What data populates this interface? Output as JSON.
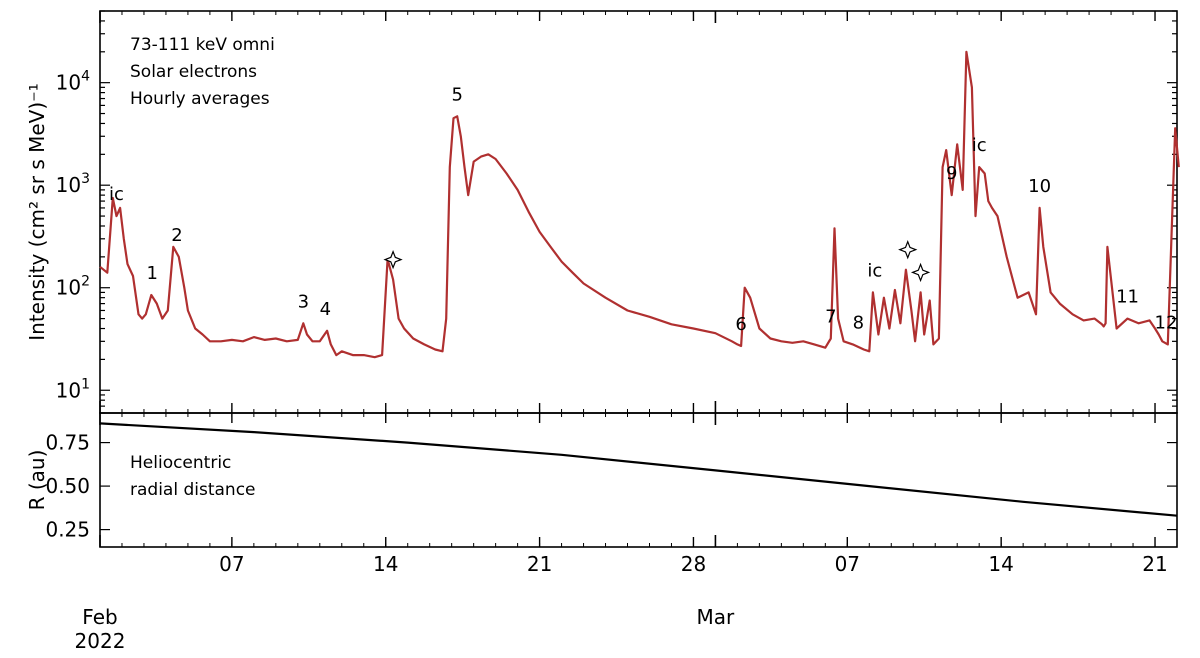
{
  "chart_data": [
    {
      "type": "line",
      "panel": "top",
      "xlabel": "",
      "ylabel": "Intensity (cm² sr s MeV)⁻¹",
      "yscale": "log",
      "ylim": [
        6,
        50000
      ],
      "xlim": [
        "2022-02-01",
        "2022-03-22"
      ],
      "y_ticks": [
        {
          "value": 10,
          "base": "10",
          "exp": "1"
        },
        {
          "value": 100,
          "base": "10",
          "exp": "2"
        },
        {
          "value": 1000,
          "base": "10",
          "exp": "3"
        },
        {
          "value": 10000,
          "base": "10",
          "exp": "4"
        }
      ],
      "info_lines": [
        "73-111 keV omni",
        "Solar electrons",
        "Hourly averages"
      ],
      "series": [
        {
          "color": "#b03030",
          "x": [
            "2022-02-01T00:00",
            "2022-02-01T08:00",
            "2022-02-01T14:00",
            "2022-02-01T18:00",
            "2022-02-01T22:00",
            "2022-02-02T02:00",
            "2022-02-02T06:00",
            "2022-02-02T12:00",
            "2022-02-02T18:00",
            "2022-02-02T22:00",
            "2022-02-03T02:00",
            "2022-02-03T08:00",
            "2022-02-03T14:00",
            "2022-02-03T20:00",
            "2022-02-04T02:00",
            "2022-02-04T08:00",
            "2022-02-04T14:00",
            "2022-02-04T20:00",
            "2022-02-05T00:00",
            "2022-02-05T08:00",
            "2022-02-05T16:00",
            "2022-02-06T00:00",
            "2022-02-06T12:00",
            "2022-02-07T00:00",
            "2022-02-07T12:00",
            "2022-02-08T00:00",
            "2022-02-08T12:00",
            "2022-02-09T00:00",
            "2022-02-09T12:00",
            "2022-02-10T00:00",
            "2022-02-10T06:00",
            "2022-02-10T10:00",
            "2022-02-10T16:00",
            "2022-02-11T00:00",
            "2022-02-11T08:00",
            "2022-02-11T12:00",
            "2022-02-11T18:00",
            "2022-02-12T00:00",
            "2022-02-12T12:00",
            "2022-02-13T00:00",
            "2022-02-13T12:00",
            "2022-02-13T20:00",
            "2022-02-14T02:00",
            "2022-02-14T08:00",
            "2022-02-14T14:00",
            "2022-02-14T20:00",
            "2022-02-15T06:00",
            "2022-02-15T18:00",
            "2022-02-16T06:00",
            "2022-02-16T14:00",
            "2022-02-16T18:00",
            "2022-02-16T22:00",
            "2022-02-17T02:00",
            "2022-02-17T06:00",
            "2022-02-17T10:00",
            "2022-02-17T14:00",
            "2022-02-17T18:00",
            "2022-02-18T00:00",
            "2022-02-18T08:00",
            "2022-02-18T16:00",
            "2022-02-19T00:00",
            "2022-02-19T12:00",
            "2022-02-20T00:00",
            "2022-02-20T12:00",
            "2022-02-21T00:00",
            "2022-02-21T12:00",
            "2022-02-22T00:00",
            "2022-02-22T12:00",
            "2022-02-23T00:00",
            "2022-02-24T00:00",
            "2022-02-25T00:00",
            "2022-02-26T00:00",
            "2022-02-27T00:00",
            "2022-02-28T00:00",
            "2022-03-01T00:00",
            "2022-03-01T18:00",
            "2022-03-02T00:00",
            "2022-03-02T04:00",
            "2022-03-02T08:00",
            "2022-03-02T14:00",
            "2022-03-03T00:00",
            "2022-03-03T12:00",
            "2022-03-04T00:00",
            "2022-03-04T12:00",
            "2022-03-05T00:00",
            "2022-03-05T12:00",
            "2022-03-06T00:00",
            "2022-03-06T06:00",
            "2022-03-06T10:00",
            "2022-03-06T14:00",
            "2022-03-06T20:00",
            "2022-03-07T06:00",
            "2022-03-07T18:00",
            "2022-03-08T00:00",
            "2022-03-08T04:00",
            "2022-03-08T10:00",
            "2022-03-08T16:00",
            "2022-03-08T22:00",
            "2022-03-09T04:00",
            "2022-03-09T10:00",
            "2022-03-09T16:00",
            "2022-03-09T22:00",
            "2022-03-10T02:00",
            "2022-03-10T08:00",
            "2022-03-10T12:00",
            "2022-03-10T18:00",
            "2022-03-10T22:00",
            "2022-03-11T04:00",
            "2022-03-11T08:00",
            "2022-03-11T12:00",
            "2022-03-11T18:00",
            "2022-03-12T00:00",
            "2022-03-12T06:00",
            "2022-03-12T10:00",
            "2022-03-12T16:00",
            "2022-03-12T20:00",
            "2022-03-13T00:00",
            "2022-03-13T06:00",
            "2022-03-13T10:00",
            "2022-03-13T14:00",
            "2022-03-13T20:00",
            "2022-03-14T06:00",
            "2022-03-14T18:00",
            "2022-03-15T06:00",
            "2022-03-15T14:00",
            "2022-03-15T18:00",
            "2022-03-15T22:00",
            "2022-03-16T06:00",
            "2022-03-16T16:00",
            "2022-03-17T06:00",
            "2022-03-17T18:00",
            "2022-03-18T06:00",
            "2022-03-18T14:00",
            "2022-03-18T16:00",
            "2022-03-18T18:00",
            "2022-03-18T20:00",
            "2022-03-19T06:00",
            "2022-03-19T18:00",
            "2022-03-20T06:00",
            "2022-03-20T18:00",
            "2022-03-21T00:00",
            "2022-03-21T04:00",
            "2022-03-21T08:00",
            "2022-03-21T14:00",
            "2022-03-21T22:00",
            "2022-03-22T02:00"
          ],
          "y": [
            160,
            140,
            750,
            500,
            600,
            300,
            170,
            130,
            55,
            50,
            55,
            85,
            70,
            50,
            60,
            250,
            200,
            100,
            60,
            40,
            35,
            30,
            30,
            31,
            30,
            33,
            31,
            32,
            30,
            31,
            45,
            35,
            30,
            30,
            38,
            28,
            22,
            24,
            22,
            22,
            21,
            22,
            190,
            120,
            50,
            40,
            32,
            28,
            25,
            24,
            50,
            1500,
            4500,
            4700,
            3000,
            1500,
            800,
            1700,
            1900,
            2000,
            1800,
            1300,
            900,
            550,
            350,
            250,
            180,
            140,
            110,
            80,
            60,
            52,
            44,
            40,
            36,
            30,
            28,
            27,
            100,
            80,
            40,
            32,
            30,
            29,
            30,
            28,
            26,
            32,
            380,
            50,
            30,
            28,
            25,
            24,
            90,
            35,
            80,
            40,
            95,
            45,
            150,
            60,
            30,
            90,
            35,
            75,
            28,
            32,
            1500,
            2200,
            800,
            2500,
            900,
            20000,
            9000,
            500,
            1500,
            1300,
            700,
            600,
            500,
            200,
            80,
            90,
            55,
            600,
            250,
            90,
            70,
            55,
            48,
            50,
            44,
            42,
            45,
            250,
            40,
            50,
            45,
            48,
            40,
            35,
            30,
            28,
            3600,
            1500
          ]
        }
      ],
      "annotations": [
        {
          "date": "2022-02-01T18:00",
          "text": "ic"
        },
        {
          "date": "2022-02-03T09:00",
          "text": "1"
        },
        {
          "date": "2022-02-04T12:00",
          "text": "2"
        },
        {
          "date": "2022-02-10T06:00",
          "text": "3"
        },
        {
          "date": "2022-02-11T06:00",
          "text": "4"
        },
        {
          "date": "2022-02-14T08:00",
          "text": "star"
        },
        {
          "date": "2022-02-17T06:00",
          "text": "5"
        },
        {
          "date": "2022-03-02T04:00",
          "text": "6"
        },
        {
          "date": "2022-03-06T06:00",
          "text": "7"
        },
        {
          "date": "2022-03-07T12:00",
          "text": "8"
        },
        {
          "date": "2022-03-08T06:00",
          "text": "ic"
        },
        {
          "date": "2022-03-09T18:00",
          "text": "star"
        },
        {
          "date": "2022-03-10T08:00",
          "text": "star"
        },
        {
          "date": "2022-03-11T18:00",
          "text": "9"
        },
        {
          "date": "2022-03-13T00:00",
          "text": "ic"
        },
        {
          "date": "2022-03-15T18:00",
          "text": "10"
        },
        {
          "date": "2022-03-19T18:00",
          "text": "11"
        },
        {
          "date": "2022-03-21T12:00",
          "text": "12"
        }
      ]
    },
    {
      "type": "line",
      "panel": "bottom",
      "ylabel": "R (au)",
      "ylim": [
        0.15,
        0.92
      ],
      "y_ticks": [
        "0.25",
        "0.50",
        "0.75"
      ],
      "info_lines": [
        "Heliocentric",
        "radial distance"
      ],
      "series": [
        {
          "color": "#000000",
          "x": [
            "2022-02-01",
            "2022-02-08",
            "2022-02-15",
            "2022-02-22",
            "2022-03-01",
            "2022-03-08",
            "2022-03-15",
            "2022-03-22"
          ],
          "y": [
            0.86,
            0.81,
            0.75,
            0.68,
            0.59,
            0.5,
            0.41,
            0.33
          ]
        }
      ]
    }
  ],
  "x_axis": {
    "ticks": [
      {
        "date": "2022-02-07",
        "label": "07"
      },
      {
        "date": "2022-02-14",
        "label": "14"
      },
      {
        "date": "2022-02-21",
        "label": "21"
      },
      {
        "date": "2022-02-28",
        "label": "28"
      },
      {
        "date": "2022-03-07",
        "label": "07"
      },
      {
        "date": "2022-03-14",
        "label": "14"
      },
      {
        "date": "2022-03-21",
        "label": "21"
      }
    ],
    "months": [
      {
        "date": "2022-02-01",
        "label": "Feb",
        "year": "2022"
      },
      {
        "date": "2022-03-01",
        "label": "Mar",
        "year": ""
      }
    ]
  }
}
